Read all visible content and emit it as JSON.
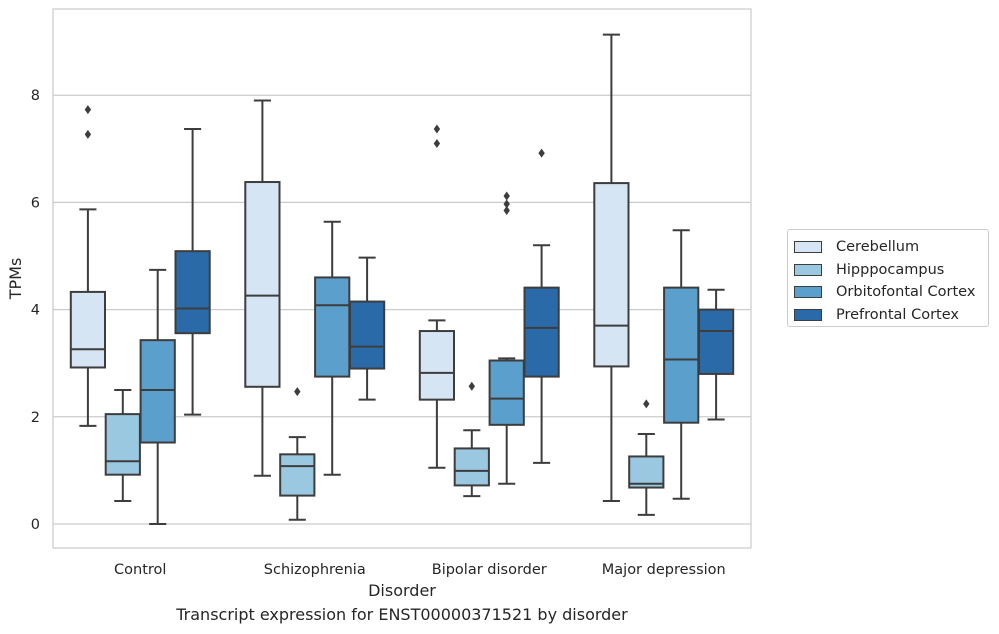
{
  "chart_data": {
    "type": "boxplot",
    "xlabel": "Disorder",
    "ylabel": "TPMs",
    "ylim": [
      -0.45,
      9.6
    ],
    "yticks": [
      0,
      2,
      4,
      6,
      8
    ],
    "grid": "horizontal",
    "legend_position": "right",
    "categories": [
      "Control",
      "Schizophrenia",
      "Bipolar disorder",
      "Major depression"
    ],
    "series": [
      {
        "name": "Cerebellum",
        "color": "#d6e5f4",
        "boxes": [
          {
            "whislo": 1.83,
            "q1": 2.92,
            "med": 3.26,
            "q3": 4.33,
            "whishi": 5.87,
            "fliers": [
              7.27,
              7.73
            ]
          },
          {
            "whislo": 0.9,
            "q1": 2.56,
            "med": 4.26,
            "q3": 6.38,
            "whishi": 7.9,
            "fliers": []
          },
          {
            "whislo": 1.05,
            "q1": 2.32,
            "med": 2.82,
            "q3": 3.6,
            "whishi": 3.8,
            "fliers": [
              7.1,
              7.37
            ]
          },
          {
            "whislo": 0.43,
            "q1": 2.94,
            "med": 3.7,
            "q3": 6.36,
            "whishi": 9.13,
            "fliers": []
          }
        ]
      },
      {
        "name": "Hipppocampus",
        "color": "#9ac8e0",
        "boxes": [
          {
            "whislo": 0.43,
            "q1": 0.92,
            "med": 1.17,
            "q3": 2.05,
            "whishi": 2.5,
            "fliers": []
          },
          {
            "whislo": 0.08,
            "q1": 0.53,
            "med": 1.08,
            "q3": 1.3,
            "whishi": 1.62,
            "fliers": [
              2.47
            ]
          },
          {
            "whislo": 0.52,
            "q1": 0.72,
            "med": 0.99,
            "q3": 1.41,
            "whishi": 1.75,
            "fliers": [
              2.57
            ]
          },
          {
            "whislo": 0.17,
            "q1": 0.68,
            "med": 0.75,
            "q3": 1.26,
            "whishi": 1.68,
            "fliers": [
              2.24
            ]
          }
        ]
      },
      {
        "name": "Orbitofontal Cortex",
        "color": "#5b9fcd",
        "boxes": [
          {
            "whislo": 0.0,
            "q1": 1.52,
            "med": 2.5,
            "q3": 3.43,
            "whishi": 4.74,
            "fliers": []
          },
          {
            "whislo": 0.92,
            "q1": 2.75,
            "med": 4.08,
            "q3": 4.6,
            "whishi": 5.64,
            "fliers": []
          },
          {
            "whislo": 0.75,
            "q1": 1.85,
            "med": 2.34,
            "q3": 3.05,
            "whishi": 3.09,
            "fliers": [
              5.85,
              5.97,
              6.12
            ]
          },
          {
            "whislo": 0.47,
            "q1": 1.89,
            "med": 3.07,
            "q3": 4.41,
            "whishi": 5.48,
            "fliers": []
          }
        ]
      },
      {
        "name": "Prefrontal Cortex",
        "color": "#2b6aa8",
        "boxes": [
          {
            "whislo": 2.04,
            "q1": 3.56,
            "med": 4.02,
            "q3": 5.09,
            "whishi": 7.37,
            "fliers": []
          },
          {
            "whislo": 2.32,
            "q1": 2.9,
            "med": 3.31,
            "q3": 4.15,
            "whishi": 4.97,
            "fliers": []
          },
          {
            "whislo": 1.14,
            "q1": 2.75,
            "med": 3.66,
            "q3": 4.41,
            "whishi": 5.2,
            "fliers": [
              6.92
            ]
          },
          {
            "whislo": 1.95,
            "q1": 2.8,
            "med": 3.6,
            "q3": 4.0,
            "whishi": 4.37,
            "fliers": []
          }
        ]
      }
    ]
  },
  "caption": "Transcript expression for ENST00000371521 by disorder"
}
